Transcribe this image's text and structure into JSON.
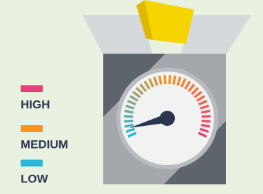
{
  "legend": {
    "items": [
      {
        "label": "HIGH",
        "color": "#e8407a"
      },
      {
        "label": "MEDIUM",
        "color": "#f7941d"
      },
      {
        "label": "LOW",
        "color": "#29b6d8"
      }
    ]
  }
}
